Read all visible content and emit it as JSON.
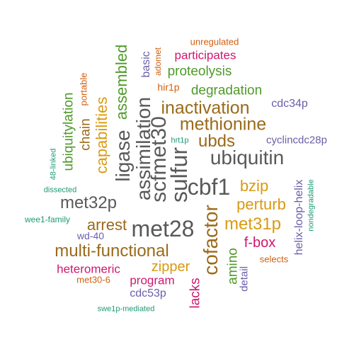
{
  "colors": {
    "gray": "#595959",
    "brown": "#9a6a1a",
    "gold": "#d99a12",
    "green": "#4f9a2a",
    "purple": "#6a5fa8",
    "magenta": "#d0166f",
    "orange": "#d45f0e",
    "teal": "#1d9a76"
  },
  "words": [
    {
      "id": "met28",
      "text": "met28",
      "color": "gray"
    },
    {
      "id": "cbf1",
      "text": "cbf1",
      "color": "gray"
    },
    {
      "id": "sulfur",
      "text": "sulfur",
      "color": "gray"
    },
    {
      "id": "scfmet30",
      "text": "scfmet30",
      "color": "gray"
    },
    {
      "id": "ubiquitin",
      "text": "ubiquitin",
      "color": "gray"
    },
    {
      "id": "assimilation",
      "text": "assimilation",
      "color": "gray"
    },
    {
      "id": "ligase",
      "text": "ligase",
      "color": "gray"
    },
    {
      "id": "met32p",
      "text": "met32p",
      "color": "gray"
    },
    {
      "id": "cofactor",
      "text": "cofactor",
      "color": "brown"
    },
    {
      "id": "multi-functional",
      "text": "multi-functional",
      "color": "brown"
    },
    {
      "id": "inactivation",
      "text": "inactivation",
      "color": "brown"
    },
    {
      "id": "methionine",
      "text": "methionine",
      "color": "brown"
    },
    {
      "id": "ubds",
      "text": "ubds",
      "color": "brown"
    },
    {
      "id": "arrest",
      "text": "arrest",
      "color": "brown"
    },
    {
      "id": "chain",
      "text": "chain",
      "color": "brown"
    },
    {
      "id": "met31p",
      "text": "met31p",
      "color": "gold"
    },
    {
      "id": "perturb",
      "text": "perturb",
      "color": "gold"
    },
    {
      "id": "bzip",
      "text": "bzip",
      "color": "gold"
    },
    {
      "id": "zipper",
      "text": "zipper",
      "color": "gold"
    },
    {
      "id": "capabilities",
      "text": "capabilities",
      "color": "gold"
    },
    {
      "id": "assembled",
      "text": "assembled",
      "color": "green"
    },
    {
      "id": "proteolysis",
      "text": "proteolysis",
      "color": "green"
    },
    {
      "id": "degradation",
      "text": "degradation",
      "color": "green"
    },
    {
      "id": "ubiquitylation",
      "text": "ubiquitylation",
      "color": "green"
    },
    {
      "id": "amino",
      "text": "amino",
      "color": "green"
    },
    {
      "id": "basic",
      "text": "basic",
      "color": "purple"
    },
    {
      "id": "cdc34p",
      "text": "cdc34p",
      "color": "purple"
    },
    {
      "id": "cyclincdc28p",
      "text": "cyclincdc28p",
      "color": "purple"
    },
    {
      "id": "helix-loop-helix",
      "text": "helix-loop-helix",
      "color": "purple"
    },
    {
      "id": "detail",
      "text": "detail",
      "color": "purple"
    },
    {
      "id": "wd-40",
      "text": "wd-40",
      "color": "purple"
    },
    {
      "id": "cdc53p",
      "text": "cdc53p",
      "color": "purple"
    },
    {
      "id": "f-box",
      "text": "f-box",
      "color": "magenta"
    },
    {
      "id": "participates",
      "text": "participates",
      "color": "magenta"
    },
    {
      "id": "heteromeric",
      "text": "heteromeric",
      "color": "magenta"
    },
    {
      "id": "program",
      "text": "program",
      "color": "magenta"
    },
    {
      "id": "lacks",
      "text": "lacks",
      "color": "magenta"
    },
    {
      "id": "unregulated",
      "text": "unregulated",
      "color": "orange"
    },
    {
      "id": "adomet",
      "text": "adomet",
      "color": "orange"
    },
    {
      "id": "hir1p",
      "text": "hir1p",
      "color": "orange"
    },
    {
      "id": "portable",
      "text": "portable",
      "color": "orange"
    },
    {
      "id": "selects",
      "text": "selects",
      "color": "orange"
    },
    {
      "id": "met30-6",
      "text": "met30-6",
      "color": "orange"
    },
    {
      "id": "48-linked",
      "text": "48-linked",
      "color": "teal"
    },
    {
      "id": "dissected",
      "text": "dissected",
      "color": "teal"
    },
    {
      "id": "wee1-family",
      "text": "wee1-family",
      "color": "teal"
    },
    {
      "id": "hrt1p",
      "text": "hrt1p",
      "color": "teal"
    },
    {
      "id": "nondegradable",
      "text": "nondegradable",
      "color": "teal"
    },
    {
      "id": "swe1p-mediated",
      "text": "swe1p-mediated",
      "color": "teal"
    }
  ]
}
